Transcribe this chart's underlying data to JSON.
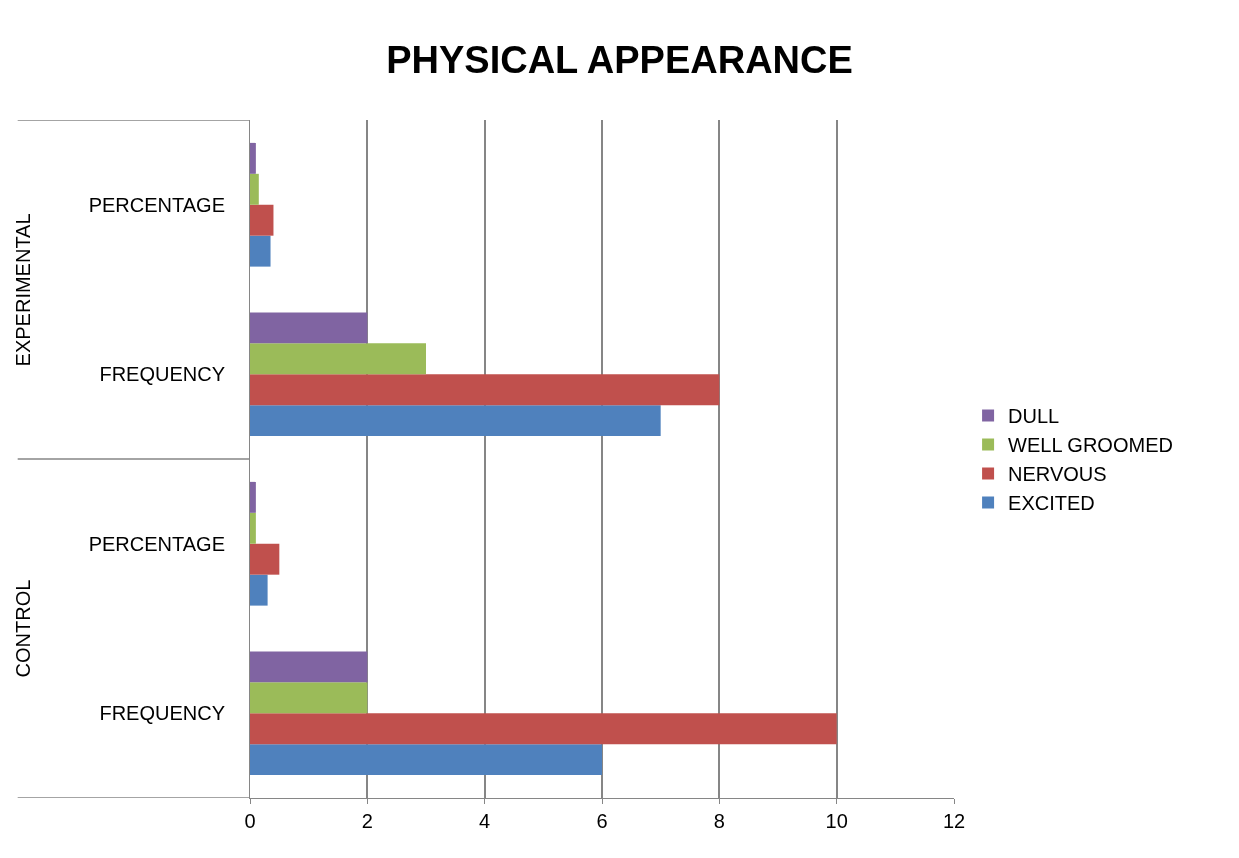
{
  "chart_data": {
    "type": "bar",
    "orientation": "horizontal",
    "title": "PHYSICAL APPEARANCE",
    "categories": [
      "PERCENTAGE",
      "FREQUENCY",
      "PERCENTAGE",
      "FREQUENCY"
    ],
    "annotations": [
      "EXPERIMENTAL",
      "CONTROL"
    ],
    "series": [
      {
        "name": "EXCITED",
        "color": "#4f81bd",
        "values": [
          0.35,
          7,
          0.3,
          6
        ]
      },
      {
        "name": "NERVOUS",
        "color": "#c0504d",
        "values": [
          0.4,
          8,
          0.5,
          10
        ]
      },
      {
        "name": "WELL GROOMED",
        "color": "#9bbb59",
        "values": [
          0.15,
          3,
          0.1,
          2
        ]
      },
      {
        "name": "DULL",
        "color": "#8064a2",
        "values": [
          0.1,
          2,
          0.1,
          2
        ]
      }
    ],
    "xlim": [
      0,
      12
    ],
    "xticks": [
      0,
      2,
      4,
      6,
      8,
      10,
      12
    ],
    "grid": "x",
    "legend": "right"
  }
}
